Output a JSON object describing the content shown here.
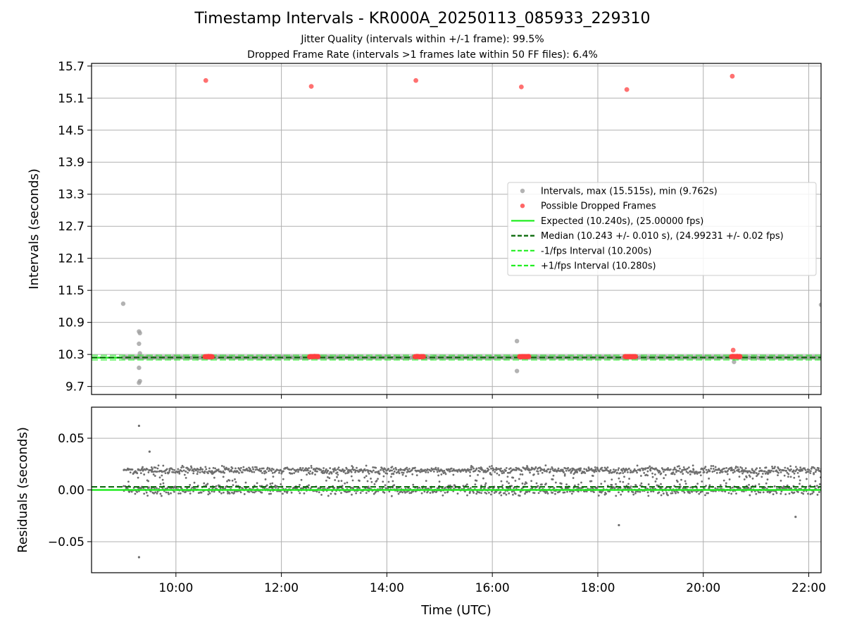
{
  "figure": {
    "title": "Timestamp Intervals - KR000A_20250113_085933_229310",
    "subtitle_1": "Jitter Quality (intervals within +/-1 frame): 99.5%",
    "subtitle_2": "Dropped Frame Rate (intervals >1 frames late within 50 FF files): 6.4%"
  },
  "colors": {
    "intervals": "#a0a0a0",
    "dropped": "#ff4040",
    "expected": "#22ee22",
    "median": "#006400",
    "bound": "#22ee22",
    "residuals": "#6e6e6e",
    "grid": "#b0b0b0"
  },
  "chart_data": [
    {
      "type": "scatter",
      "xlabel": "",
      "ylabel": "Intervals (seconds)",
      "xlim": [
        "08:24",
        "22:14"
      ],
      "ylim": [
        9.55,
        15.75
      ],
      "ytick_labels": [
        "9.7",
        "10.3",
        "10.9",
        "11.5",
        "12.1",
        "12.7",
        "13.3",
        "13.9",
        "14.5",
        "15.1",
        "15.7"
      ],
      "xtick_labels": [
        "10:00",
        "12:00",
        "14:00",
        "16:00",
        "18:00",
        "20:00",
        "22:00"
      ],
      "grid": true,
      "legend_position": "center-right",
      "legend": [
        "Intervals, max (15.515s), min (9.762s)",
        "Possible Dropped Frames",
        "Expected (10.240s), (25.00000 fps)",
        "Median (10.243 +/- 0.010 s), (24.99231 +/- 0.02 fps)",
        "-1/fps Interval (10.200s)",
        "+1/fps Interval (10.280s)"
      ],
      "reference_lines": {
        "expected": 10.24,
        "median": 10.243,
        "minus_1_fps": 10.2,
        "plus_1_fps": 10.28
      },
      "series": [
        {
          "name": "Intervals, max (15.515s), min (9.762s)",
          "baseline": 10.243,
          "x_range": [
            "09:00",
            "22:14"
          ],
          "outliers": [
            {
              "x": "09:00",
              "y": 11.25
            },
            {
              "x": "09:18",
              "y": 10.73
            },
            {
              "x": "09:19",
              "y": 10.7
            },
            {
              "x": "09:18",
              "y": 10.5
            },
            {
              "x": "09:19",
              "y": 10.32
            },
            {
              "x": "09:18",
              "y": 10.05
            },
            {
              "x": "09:19",
              "y": 9.8
            },
            {
              "x": "09:18",
              "y": 9.77
            },
            {
              "x": "16:28",
              "y": 10.55
            },
            {
              "x": "16:28",
              "y": 9.99
            },
            {
              "x": "20:35",
              "y": 10.16
            },
            {
              "x": "22:14",
              "y": 11.23
            }
          ]
        },
        {
          "name": "Possible Dropped Frames",
          "points": [
            {
              "x": "10:34",
              "y": 15.43
            },
            {
              "x": "12:34",
              "y": 15.32
            },
            {
              "x": "14:33",
              "y": 15.43
            },
            {
              "x": "16:33",
              "y": 15.31
            },
            {
              "x": "18:33",
              "y": 15.26
            },
            {
              "x": "20:33",
              "y": 15.51
            },
            {
              "x": "20:34",
              "y": 10.38
            }
          ],
          "clusters": [
            {
              "x_start": "10:33",
              "x_end": "10:42",
              "y": 10.26
            },
            {
              "x_start": "12:32",
              "x_end": "12:42",
              "y": 10.26
            },
            {
              "x_start": "14:32",
              "x_end": "14:42",
              "y": 10.26
            },
            {
              "x_start": "16:31",
              "x_end": "16:42",
              "y": 10.26
            },
            {
              "x_start": "18:31",
              "x_end": "18:43",
              "y": 10.26
            },
            {
              "x_start": "20:32",
              "x_end": "20:42",
              "y": 10.26
            }
          ]
        }
      ]
    },
    {
      "type": "scatter",
      "xlabel": "Time (UTC)",
      "ylabel": "Residuals (seconds)",
      "xlim": [
        "08:24",
        "22:14"
      ],
      "ylim": [
        -0.08,
        0.08
      ],
      "ytick_labels": [
        "−0.05",
        "0.00",
        "0.05"
      ],
      "xtick_labels": [
        "10:00",
        "12:00",
        "14:00",
        "16:00",
        "18:00",
        "20:00",
        "22:00"
      ],
      "grid": true,
      "reference_lines": {
        "zero": 0.0,
        "median_offset": 0.003
      },
      "series": [
        {
          "bands": [
            {
              "center": 0.0,
              "spread": 0.006
            },
            {
              "center": 0.019,
              "spread": 0.005
            }
          ],
          "x_range": [
            "09:00",
            "22:14"
          ],
          "outliers": [
            {
              "x": "09:18",
              "y": 0.062
            },
            {
              "x": "09:18",
              "y": -0.065
            },
            {
              "x": "09:30",
              "y": 0.037
            },
            {
              "x": "18:24",
              "y": -0.034
            },
            {
              "x": "21:45",
              "y": -0.026
            }
          ]
        }
      ]
    }
  ]
}
